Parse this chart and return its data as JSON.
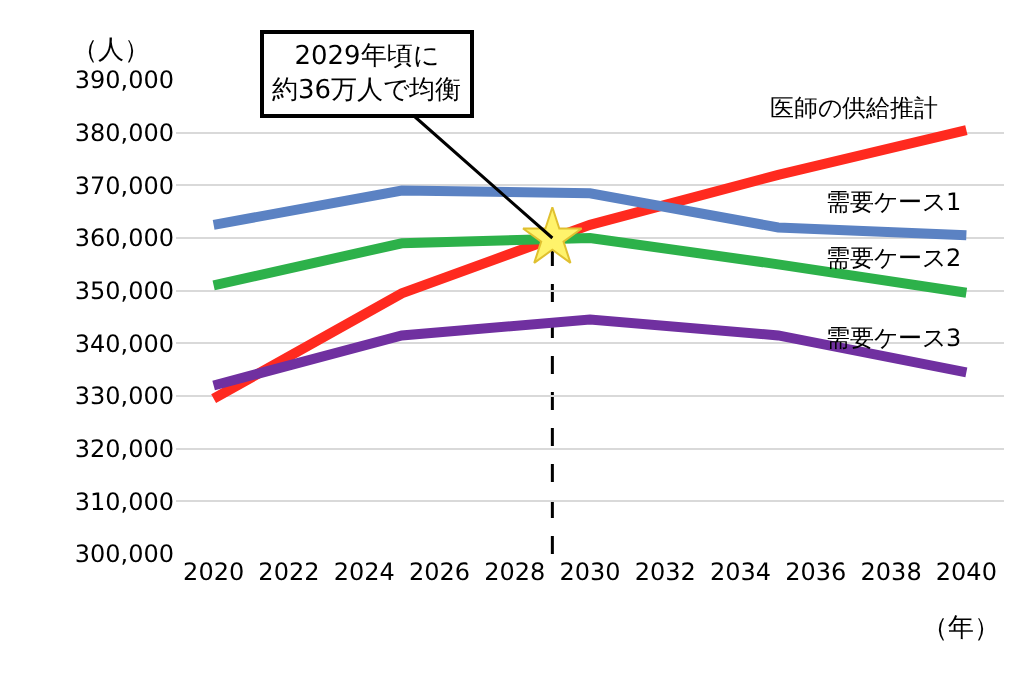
{
  "chart_data": {
    "type": "line",
    "xlabel": "（年）",
    "ylabel": "（人）",
    "x": [
      2020,
      2025,
      2030,
      2035,
      2040
    ],
    "series": [
      {
        "name": "医師の供給推計",
        "color": "#ff2a1f",
        "values": [
          329500,
          349500,
          362500,
          372000,
          380500
        ]
      },
      {
        "name": "需要ケース1",
        "color": "#5b82c3",
        "values": [
          362500,
          369000,
          368500,
          362000,
          360500
        ]
      },
      {
        "name": "需要ケース2",
        "color": "#2db14a",
        "values": [
          351000,
          359000,
          360000,
          355000,
          349600
        ]
      },
      {
        "name": "需要ケース3",
        "color": "#7030a0",
        "values": [
          332000,
          341500,
          344500,
          341500,
          334500
        ]
      }
    ],
    "xlim": [
      2019,
      2041
    ],
    "xticks": [
      2020,
      2022,
      2024,
      2026,
      2028,
      2030,
      2032,
      2034,
      2036,
      2038,
      2040
    ],
    "ylim": [
      300000,
      390000
    ],
    "yticks": [
      {
        "value": 300000,
        "label": "300,000"
      },
      {
        "value": 310000,
        "label": "310,000"
      },
      {
        "value": 320000,
        "label": "320,000"
      },
      {
        "value": 330000,
        "label": "330,000"
      },
      {
        "value": 340000,
        "label": "340,000"
      },
      {
        "value": 350000,
        "label": "350,000"
      },
      {
        "value": 360000,
        "label": "360,000"
      },
      {
        "value": 370000,
        "label": "370,000"
      },
      {
        "value": 380000,
        "label": "380,000"
      },
      {
        "value": 390000,
        "label": "390,000"
      }
    ],
    "annotations": [
      {
        "text": "2029年頃に約36万人で均衡",
        "x": 2029,
        "y": 360000
      }
    ],
    "ref_lines": [
      {
        "axis": "x",
        "value": 2029,
        "line_style": "dashed",
        "color": "#000000"
      }
    ],
    "grid": "y",
    "legend": false,
    "marker": "none",
    "line_style": "solid"
  }
}
